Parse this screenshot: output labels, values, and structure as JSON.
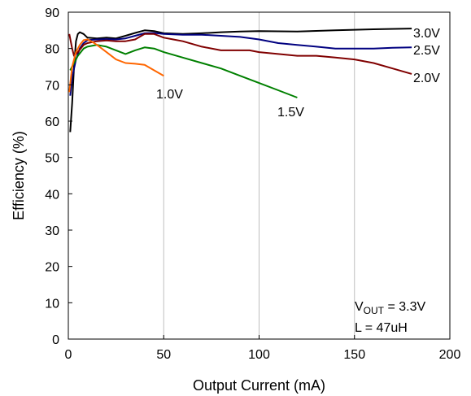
{
  "chart_data": {
    "type": "line",
    "xlabel": "Output Current (mA)",
    "ylabel": "Efficiency (%)",
    "xlim": [
      0,
      200
    ],
    "ylim": [
      0,
      90
    ],
    "x_ticks": [
      "0",
      "50",
      "100",
      "150",
      "200"
    ],
    "y_ticks": [
      "0",
      "10",
      "20",
      "30",
      "40",
      "50",
      "60",
      "70",
      "80",
      "90"
    ],
    "grid": true,
    "annotation": {
      "vout_prefix": "V",
      "vout_sub": "OUT",
      "vout_rest": " = 3.3V",
      "inductor": "L = 47uH"
    },
    "series": [
      {
        "name": "3.0V",
        "color": "#000000",
        "points": [
          [
            1,
            57
          ],
          [
            2,
            65
          ],
          [
            3,
            75
          ],
          [
            4,
            82
          ],
          [
            5,
            84
          ],
          [
            6,
            84.5
          ],
          [
            8,
            84
          ],
          [
            10,
            83
          ],
          [
            15,
            82.8
          ],
          [
            20,
            83
          ],
          [
            25,
            82.8
          ],
          [
            30,
            83.5
          ],
          [
            35,
            84.3
          ],
          [
            40,
            85
          ],
          [
            45,
            84.8
          ],
          [
            50,
            84.2
          ],
          [
            60,
            84
          ],
          [
            70,
            84.2
          ],
          [
            80,
            84.5
          ],
          [
            90,
            84.7
          ],
          [
            100,
            84.8
          ],
          [
            120,
            84.7
          ],
          [
            140,
            85
          ],
          [
            160,
            85.3
          ],
          [
            180,
            85.5
          ]
        ]
      },
      {
        "name": "2.5V",
        "color": "#000080",
        "points": [
          [
            1,
            67
          ],
          [
            2,
            72
          ],
          [
            4,
            77
          ],
          [
            6,
            80
          ],
          [
            8,
            81.5
          ],
          [
            10,
            82.3
          ],
          [
            15,
            82.5
          ],
          [
            20,
            82.6
          ],
          [
            25,
            82.5
          ],
          [
            30,
            82.8
          ],
          [
            35,
            83.5
          ],
          [
            40,
            84.2
          ],
          [
            45,
            84.3
          ],
          [
            50,
            84
          ],
          [
            60,
            83.8
          ],
          [
            70,
            83.8
          ],
          [
            80,
            83.5
          ],
          [
            90,
            83.2
          ],
          [
            100,
            82.5
          ],
          [
            110,
            81.5
          ],
          [
            120,
            81
          ],
          [
            130,
            80.5
          ],
          [
            140,
            80
          ],
          [
            150,
            80
          ],
          [
            160,
            80
          ],
          [
            170,
            80.2
          ],
          [
            180,
            80.3
          ]
        ]
      },
      {
        "name": "2.0V",
        "color": "#800000",
        "points": [
          [
            0.5,
            84
          ],
          [
            2,
            80
          ],
          [
            3,
            78
          ],
          [
            5,
            79
          ],
          [
            8,
            81
          ],
          [
            10,
            81.5
          ],
          [
            15,
            82
          ],
          [
            20,
            82.2
          ],
          [
            25,
            82
          ],
          [
            30,
            82
          ],
          [
            35,
            82.5
          ],
          [
            40,
            84
          ],
          [
            45,
            84
          ],
          [
            50,
            83
          ],
          [
            55,
            82.5
          ],
          [
            60,
            82
          ],
          [
            70,
            80.5
          ],
          [
            80,
            79.5
          ],
          [
            90,
            79.5
          ],
          [
            95,
            79.5
          ],
          [
            100,
            79
          ],
          [
            110,
            78.5
          ],
          [
            120,
            78
          ],
          [
            130,
            78
          ],
          [
            140,
            77.5
          ],
          [
            150,
            77
          ],
          [
            160,
            76
          ],
          [
            170,
            74.5
          ],
          [
            180,
            73
          ]
        ]
      },
      {
        "name": "1.5V",
        "color": "#008000",
        "points": [
          [
            1,
            74
          ],
          [
            3,
            76
          ],
          [
            5,
            78
          ],
          [
            8,
            80
          ],
          [
            10,
            80.5
          ],
          [
            15,
            81
          ],
          [
            20,
            80.5
          ],
          [
            25,
            79.5
          ],
          [
            30,
            78.5
          ],
          [
            35,
            79.5
          ],
          [
            40,
            80.3
          ],
          [
            45,
            80
          ],
          [
            50,
            79
          ],
          [
            60,
            77.5
          ],
          [
            70,
            76
          ],
          [
            80,
            74.5
          ],
          [
            90,
            72.5
          ],
          [
            100,
            70.5
          ],
          [
            110,
            68.5
          ],
          [
            120,
            66.5
          ]
        ]
      },
      {
        "name": "1.0V",
        "color": "#FF6600",
        "points": [
          [
            0.5,
            68
          ],
          [
            2,
            75
          ],
          [
            4,
            79
          ],
          [
            6,
            81
          ],
          [
            8,
            82.3
          ],
          [
            10,
            82.5
          ],
          [
            12,
            82
          ],
          [
            15,
            81
          ],
          [
            20,
            79
          ],
          [
            25,
            77
          ],
          [
            30,
            76
          ],
          [
            35,
            75.8
          ],
          [
            40,
            75.5
          ],
          [
            45,
            74
          ],
          [
            50,
            72.5
          ]
        ]
      }
    ]
  }
}
